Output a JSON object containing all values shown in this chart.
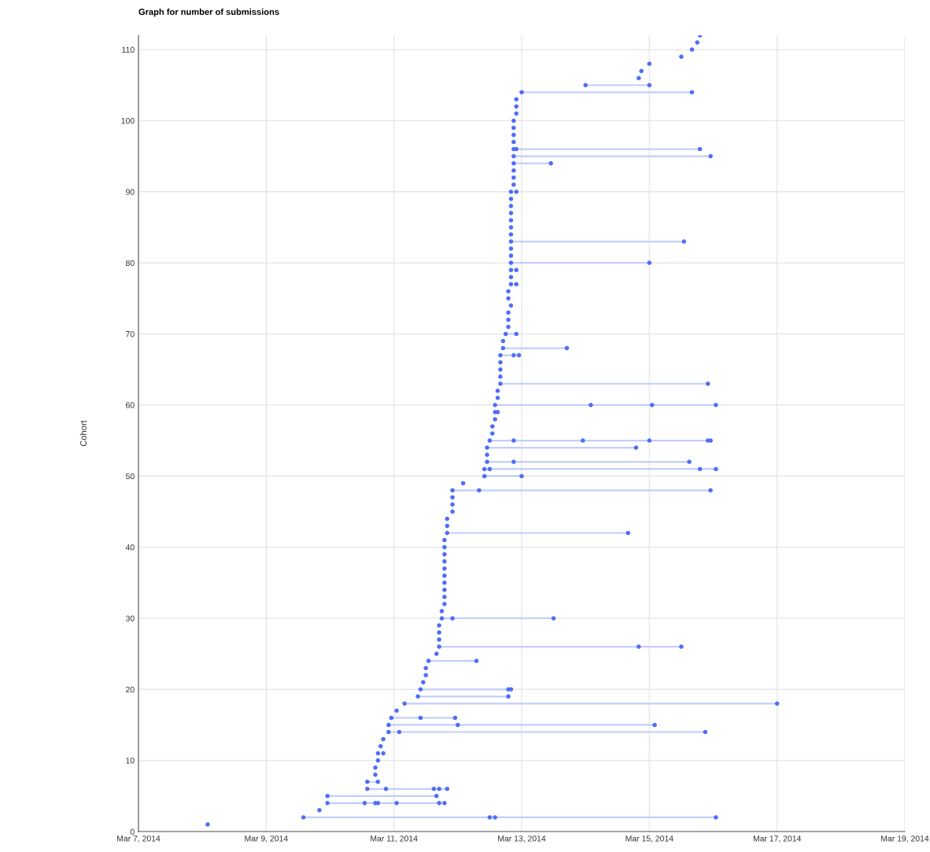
{
  "chart_data": {
    "type": "scatter",
    "title": "Graph for number of submissions",
    "ylabel": "Cohort",
    "line_style": "solid",
    "grid": true,
    "xlim": [
      "2014-03-07",
      "2014-03-19"
    ],
    "xticks": [
      {
        "value": "2014-03-07",
        "label": "Mar 7, 2014"
      },
      {
        "value": "2014-03-09",
        "label": "Mar 9, 2014"
      },
      {
        "value": "2014-03-11",
        "label": "Mar 11, 2014"
      },
      {
        "value": "2014-03-13",
        "label": "Mar 13, 2014"
      },
      {
        "value": "2014-03-15",
        "label": "Mar 15, 2014"
      },
      {
        "value": "2014-03-17",
        "label": "Mar 17, 2014"
      },
      {
        "value": "2014-03-19",
        "label": "Mar 19, 2014"
      }
    ],
    "ylim": [
      0,
      112
    ],
    "yticks": [
      0,
      10,
      20,
      30,
      40,
      50,
      60,
      70,
      80,
      90,
      100,
      110
    ],
    "series": [
      {
        "color": "#4d6ef5",
        "marker": "circle",
        "x": [
          "2014-03-08T02:00",
          "2014-03-09T14:00",
          "2014-03-12T12:00",
          "2014-03-12T14:00",
          "2014-03-16T01:00",
          "2014-03-09T20:00",
          "2014-03-09T23:00",
          "2014-03-10T13:00",
          "2014-03-10T17:00",
          "2014-03-10T18:00",
          "2014-03-11T01:00",
          "2014-03-11T17:00",
          "2014-03-11T19:00",
          "2014-03-09T23:00",
          "2014-03-11T16:00",
          "2014-03-10T14:00",
          "2014-03-10T21:00",
          "2014-03-11T15:00",
          "2014-03-11T17:00",
          "2014-03-11T20:00",
          "2014-03-10T14:00",
          "2014-03-10T18:00",
          "2014-03-10T17:00",
          "2014-03-10T17:00",
          "2014-03-10T18:00",
          "2014-03-10T18:00",
          "2014-03-10T20:00",
          "2014-03-10T19:00",
          "2014-03-10T20:00",
          "2014-03-10T22:00",
          "2014-03-11T02:00",
          "2014-03-15T21:00",
          "2014-03-10T22:00",
          "2014-03-12T00:00",
          "2014-03-15T02:00",
          "2014-03-10T23:00",
          "2014-03-11T10:00",
          "2014-03-11T23:00",
          "2014-03-11T01:00",
          "2014-03-11T04:00",
          "2014-03-17T00:00",
          "2014-03-11T09:00",
          "2014-03-12T19:00",
          "2014-03-11T10:00",
          "2014-03-12T19:00",
          "2014-03-12T20:00",
          "2014-03-11T11:00",
          "2014-03-11T12:00",
          "2014-03-11T12:00",
          "2014-03-11T13:00",
          "2014-03-12T07:00",
          "2014-03-11T16:00",
          "2014-03-11T17:00",
          "2014-03-14T20:00",
          "2014-03-15T12:00",
          "2014-03-11T17:00",
          "2014-03-11T17:00",
          "2014-03-11T17:00",
          "2014-03-11T18:00",
          "2014-03-11T22:00",
          "2014-03-13T12:00",
          "2014-03-11T18:00",
          "2014-03-11T19:00",
          "2014-03-11T19:00",
          "2014-03-11T19:00",
          "2014-03-11T19:00",
          "2014-03-11T19:00",
          "2014-03-11T19:00",
          "2014-03-11T19:00",
          "2014-03-11T19:00",
          "2014-03-11T19:00",
          "2014-03-11T19:00",
          "2014-03-11T20:00",
          "2014-03-14T16:00",
          "2014-03-11T20:00",
          "2014-03-11T20:00",
          "2014-03-11T22:00",
          "2014-03-11T22:00",
          "2014-03-11T22:00",
          "2014-03-11T22:00",
          "2014-03-12T08:00",
          "2014-03-15T23:00",
          "2014-03-12T02:00",
          "2014-03-12T10:00",
          "2014-03-13T00:00",
          "2014-03-12T10:00",
          "2014-03-12T12:00",
          "2014-03-15T19:00",
          "2014-03-16T01:00",
          "2014-03-12T11:00",
          "2014-03-12T21:00",
          "2014-03-15T15:00",
          "2014-03-12T11:00",
          "2014-03-12T11:00",
          "2014-03-14T19:00",
          "2014-03-12T12:00",
          "2014-03-12T21:00",
          "2014-03-13T23:00",
          "2014-03-15T00:00",
          "2014-03-15T22:00",
          "2014-03-15T23:00",
          "2014-03-12T13:00",
          "2014-03-12T13:00",
          "2014-03-12T14:00",
          "2014-03-12T14:00",
          "2014-03-12T15:00",
          "2014-03-12T14:00",
          "2014-03-14T02:00",
          "2014-03-15T01:00",
          "2014-03-16T01:00",
          "2014-03-12T15:00",
          "2014-03-12T15:00",
          "2014-03-12T16:00",
          "2014-03-15T22:00",
          "2014-03-12T16:00",
          "2014-03-12T16:00",
          "2014-03-12T16:00",
          "2014-03-12T16:00",
          "2014-03-12T21:00",
          "2014-03-12T23:00",
          "2014-03-12T17:00",
          "2014-03-13T17:00",
          "2014-03-12T17:00",
          "2014-03-12T18:00",
          "2014-03-12T22:00",
          "2014-03-12T19:00",
          "2014-03-12T19:00",
          "2014-03-12T19:00",
          "2014-03-12T20:00",
          "2014-03-12T19:00",
          "2014-03-12T19:00",
          "2014-03-12T20:00",
          "2014-03-12T22:00",
          "2014-03-12T20:00",
          "2014-03-12T20:00",
          "2014-03-12T22:00",
          "2014-03-12T20:00",
          "2014-03-15T00:00",
          "2014-03-12T20:00",
          "2014-03-12T20:00",
          "2014-03-12T20:00",
          "2014-03-15T13:00",
          "2014-03-12T20:00",
          "2014-03-12T20:00",
          "2014-03-12T20:00",
          "2014-03-12T20:00",
          "2014-03-12T20:00",
          "2014-03-12T20:00",
          "2014-03-12T20:00",
          "2014-03-12T22:00",
          "2014-03-12T21:00",
          "2014-03-12T21:00",
          "2014-03-12T21:00",
          "2014-03-12T21:00",
          "2014-03-13T11:00",
          "2014-03-12T21:00",
          "2014-03-15T23:00",
          "2014-03-12T21:00",
          "2014-03-12T22:00",
          "2014-03-15T19:00",
          "2014-03-12T21:00",
          "2014-03-12T21:00",
          "2014-03-12T21:00",
          "2014-03-12T21:00",
          "2014-03-12T22:00",
          "2014-03-12T22:00",
          "2014-03-12T22:00",
          "2014-03-13T00:00",
          "2014-03-15T16:00",
          "2014-03-14T00:00",
          "2014-03-15T00:00",
          "2014-03-14T20:00",
          "2014-03-14T21:00",
          "2014-03-15T00:00",
          "2014-03-15T12:00",
          "2014-03-15T16:00",
          "2014-03-15T18:00",
          "2014-03-15T19:00"
        ],
        "values": [
          1,
          2,
          2,
          2,
          2,
          3,
          4,
          4,
          4,
          4,
          4,
          4,
          4,
          5,
          5,
          6,
          6,
          6,
          6,
          6,
          7,
          7,
          8,
          9,
          10,
          11,
          11,
          12,
          13,
          14,
          14,
          14,
          15,
          15,
          15,
          16,
          16,
          16,
          17,
          18,
          18,
          19,
          19,
          20,
          20,
          20,
          21,
          22,
          23,
          24,
          24,
          25,
          26,
          26,
          26,
          27,
          28,
          29,
          30,
          30,
          30,
          31,
          32,
          33,
          34,
          35,
          36,
          37,
          38,
          39,
          40,
          41,
          42,
          42,
          43,
          44,
          45,
          46,
          47,
          48,
          48,
          48,
          49,
          50,
          50,
          51,
          51,
          51,
          51,
          52,
          52,
          52,
          53,
          54,
          54,
          55,
          55,
          55,
          55,
          55,
          55,
          56,
          57,
          58,
          59,
          59,
          60,
          60,
          60,
          60,
          61,
          62,
          63,
          63,
          64,
          65,
          66,
          67,
          67,
          67,
          68,
          68,
          69,
          70,
          70,
          71,
          72,
          73,
          74,
          75,
          76,
          77,
          77,
          78,
          79,
          79,
          80,
          80,
          81,
          82,
          83,
          83,
          84,
          85,
          86,
          87,
          88,
          89,
          90,
          90,
          91,
          92,
          93,
          94,
          94,
          95,
          95,
          96,
          96,
          96,
          97,
          98,
          99,
          100,
          101,
          102,
          103,
          104,
          104,
          105,
          105,
          106,
          107,
          108,
          109,
          110,
          111,
          112
        ]
      },
      {
        "type": "line",
        "color": "#c3cefb",
        "x": [
          "2014-03-09T14:00",
          "2014-03-16T01:00"
        ],
        "values": [
          2,
          2
        ]
      },
      {
        "type": "line",
        "color": "#c3cefb",
        "x": [
          "2014-03-09T23:00",
          "2014-03-11T19:00"
        ],
        "values": [
          4,
          4
        ]
      },
      {
        "type": "line",
        "color": "#c3cefb",
        "x": [
          "2014-03-09T23:00",
          "2014-03-11T16:00"
        ],
        "values": [
          5,
          5
        ]
      },
      {
        "type": "line",
        "color": "#c3cefb",
        "x": [
          "2014-03-10T14:00",
          "2014-03-11T20:00"
        ],
        "values": [
          6,
          6
        ]
      },
      {
        "type": "line",
        "color": "#c3cefb",
        "x": [
          "2014-03-10T14:00",
          "2014-03-10T18:00"
        ],
        "values": [
          7,
          7
        ]
      },
      {
        "type": "line",
        "color": "#c3cefb",
        "x": [
          "2014-03-10T22:00",
          "2014-03-15T21:00"
        ],
        "values": [
          14,
          14
        ]
      },
      {
        "type": "line",
        "color": "#c3cefb",
        "x": [
          "2014-03-10T22:00",
          "2014-03-15T02:00"
        ],
        "values": [
          15,
          15
        ]
      },
      {
        "type": "line",
        "color": "#c3cefb",
        "x": [
          "2014-03-10T23:00",
          "2014-03-11T23:00"
        ],
        "values": [
          16,
          16
        ]
      },
      {
        "type": "line",
        "color": "#c3cefb",
        "x": [
          "2014-03-11T04:00",
          "2014-03-17T00:00"
        ],
        "values": [
          18,
          18
        ]
      },
      {
        "type": "line",
        "color": "#c3cefb",
        "x": [
          "2014-03-11T09:00",
          "2014-03-12T19:00"
        ],
        "values": [
          19,
          19
        ]
      },
      {
        "type": "line",
        "color": "#c3cefb",
        "x": [
          "2014-03-11T10:00",
          "2014-03-12T20:00"
        ],
        "values": [
          20,
          20
        ]
      },
      {
        "type": "line",
        "color": "#c3cefb",
        "x": [
          "2014-03-11T13:00",
          "2014-03-12T07:00"
        ],
        "values": [
          24,
          24
        ]
      },
      {
        "type": "line",
        "color": "#c3cefb",
        "x": [
          "2014-03-11T17:00",
          "2014-03-15T12:00"
        ],
        "values": [
          26,
          26
        ]
      },
      {
        "type": "line",
        "color": "#c3cefb",
        "x": [
          "2014-03-11T18:00",
          "2014-03-13T12:00"
        ],
        "values": [
          30,
          30
        ]
      },
      {
        "type": "line",
        "color": "#c3cefb",
        "x": [
          "2014-03-11T20:00",
          "2014-03-14T16:00"
        ],
        "values": [
          42,
          42
        ]
      },
      {
        "type": "line",
        "color": "#c3cefb",
        "x": [
          "2014-03-11T22:00",
          "2014-03-15T23:00"
        ],
        "values": [
          48,
          48
        ]
      },
      {
        "type": "line",
        "color": "#c3cefb",
        "x": [
          "2014-03-12T10:00",
          "2014-03-13T00:00"
        ],
        "values": [
          50,
          50
        ]
      },
      {
        "type": "line",
        "color": "#c3cefb",
        "x": [
          "2014-03-12T10:00",
          "2014-03-16T01:00"
        ],
        "values": [
          51,
          51
        ]
      },
      {
        "type": "line",
        "color": "#c3cefb",
        "x": [
          "2014-03-12T11:00",
          "2014-03-15T15:00"
        ],
        "values": [
          52,
          52
        ]
      },
      {
        "type": "line",
        "color": "#c3cefb",
        "x": [
          "2014-03-12T11:00",
          "2014-03-14T19:00"
        ],
        "values": [
          54,
          54
        ]
      },
      {
        "type": "line",
        "color": "#c3cefb",
        "x": [
          "2014-03-12T12:00",
          "2014-03-15T23:00"
        ],
        "values": [
          55,
          55
        ]
      },
      {
        "type": "line",
        "color": "#c3cefb",
        "x": [
          "2014-03-12T14:00",
          "2014-03-16T01:00"
        ],
        "values": [
          60,
          60
        ]
      },
      {
        "type": "line",
        "color": "#c3cefb",
        "x": [
          "2014-03-12T16:00",
          "2014-03-15T22:00"
        ],
        "values": [
          63,
          63
        ]
      },
      {
        "type": "line",
        "color": "#c3cefb",
        "x": [
          "2014-03-12T16:00",
          "2014-03-12T23:00"
        ],
        "values": [
          67,
          67
        ]
      },
      {
        "type": "line",
        "color": "#c3cefb",
        "x": [
          "2014-03-12T17:00",
          "2014-03-13T17:00"
        ],
        "values": [
          68,
          68
        ]
      },
      {
        "type": "line",
        "color": "#c3cefb",
        "x": [
          "2014-03-12T18:00",
          "2014-03-12T22:00"
        ],
        "values": [
          70,
          70
        ]
      },
      {
        "type": "line",
        "color": "#c3cefb",
        "x": [
          "2014-03-12T20:00",
          "2014-03-15T00:00"
        ],
        "values": [
          80,
          80
        ]
      },
      {
        "type": "line",
        "color": "#c3cefb",
        "x": [
          "2014-03-12T20:00",
          "2014-03-15T13:00"
        ],
        "values": [
          83,
          83
        ]
      },
      {
        "type": "line",
        "color": "#c3cefb",
        "x": [
          "2014-03-12T21:00",
          "2014-03-13T11:00"
        ],
        "values": [
          94,
          94
        ]
      },
      {
        "type": "line",
        "color": "#c3cefb",
        "x": [
          "2014-03-12T21:00",
          "2014-03-15T23:00"
        ],
        "values": [
          95,
          95
        ]
      },
      {
        "type": "line",
        "color": "#c3cefb",
        "x": [
          "2014-03-12T21:00",
          "2014-03-15T19:00"
        ],
        "values": [
          96,
          96
        ]
      },
      {
        "type": "line",
        "color": "#c3cefb",
        "x": [
          "2014-03-13T00:00",
          "2014-03-15T16:00"
        ],
        "values": [
          104,
          104
        ]
      },
      {
        "type": "line",
        "color": "#c3cefb",
        "x": [
          "2014-03-14T00:00",
          "2014-03-15T00:00"
        ],
        "values": [
          105,
          105
        ]
      }
    ]
  }
}
